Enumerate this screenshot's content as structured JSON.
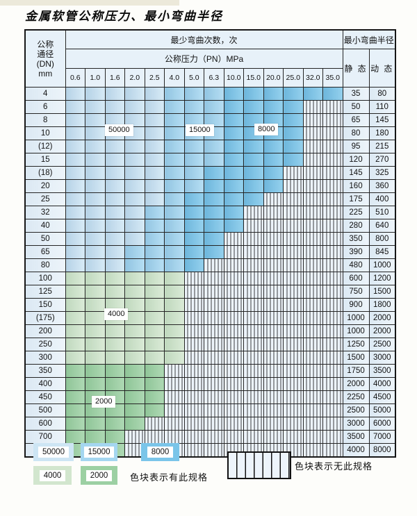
{
  "page": {
    "title": "金属软管公称压力、最小弯曲半径"
  },
  "colors": {
    "region_50000": "#cde5f4",
    "region_15000": "#a4d6f0",
    "region_8000": "#7ac5e9",
    "region_4000": "#d2e6ce",
    "region_2000": "#9cd0a3",
    "hatch_bg": "#edf4fb",
    "header_bg": "#e7f1f9"
  },
  "table": {
    "dn_header_lines": [
      "公称",
      "通径",
      "(DN)",
      "mm"
    ],
    "bend_times_label": "最少弯曲次数，次",
    "pressure_label": "公称压力（PN）MPa",
    "pressure_columns": [
      "0.6",
      "1.0",
      "1.6",
      "2.0",
      "2.5",
      "4.0",
      "5.0",
      "6.3",
      "10.0",
      "15.0",
      "20.0",
      "25.0",
      "32.0",
      "35.0"
    ],
    "radius_label": "最小弯曲半径",
    "static_label": "静 态",
    "dynamic_label": "动 态",
    "region_values": {
      "5": "50000",
      "15": "15000",
      "8": "8000",
      "4": "4000",
      "2": "2000",
      "x": "无此规格"
    },
    "rows": [
      {
        "dn": "4",
        "cells": [
          "5",
          "5",
          "5",
          "5",
          "5",
          "15",
          "15",
          "15",
          "8",
          "8",
          "8",
          "8",
          "8",
          "8"
        ],
        "static": "35",
        "dynamic": "80"
      },
      {
        "dn": "6",
        "cells": [
          "5",
          "5",
          "5",
          "5",
          "5",
          "15",
          "15",
          "15",
          "8",
          "8",
          "8",
          "8",
          "x",
          "x"
        ],
        "static": "50",
        "dynamic": "110"
      },
      {
        "dn": "8",
        "cells": [
          "5",
          "5",
          "5",
          "5",
          "5",
          "15",
          "15",
          "15",
          "8",
          "8",
          "8",
          "8",
          "x",
          "x"
        ],
        "static": "65",
        "dynamic": "145"
      },
      {
        "dn": "10",
        "cells": [
          "5",
          "5",
          "5",
          "5",
          "5",
          "15",
          "15",
          "15",
          "8",
          "8",
          "8",
          "8",
          "x",
          "x"
        ],
        "static": "80",
        "dynamic": "180"
      },
      {
        "dn": "(12)",
        "cells": [
          "5",
          "5",
          "5",
          "5",
          "5",
          "15",
          "15",
          "15",
          "8",
          "8",
          "8",
          "8",
          "x",
          "x"
        ],
        "static": "95",
        "dynamic": "215"
      },
      {
        "dn": "15",
        "cells": [
          "5",
          "5",
          "5",
          "5",
          "5",
          "15",
          "15",
          "15",
          "8",
          "8",
          "8",
          "8",
          "x",
          "x"
        ],
        "static": "120",
        "dynamic": "270"
      },
      {
        "dn": "(18)",
        "cells": [
          "5",
          "5",
          "5",
          "5",
          "5",
          "15",
          "15",
          "8",
          "8",
          "8",
          "8",
          "x",
          "x",
          "x"
        ],
        "static": "145",
        "dynamic": "325"
      },
      {
        "dn": "20",
        "cells": [
          "5",
          "5",
          "5",
          "5",
          "5",
          "15",
          "15",
          "8",
          "8",
          "8",
          "8",
          "x",
          "x",
          "x"
        ],
        "static": "160",
        "dynamic": "360"
      },
      {
        "dn": "25",
        "cells": [
          "5",
          "5",
          "5",
          "5",
          "5",
          "15",
          "8",
          "8",
          "8",
          "8",
          "x",
          "x",
          "x",
          "x"
        ],
        "static": "175",
        "dynamic": "400"
      },
      {
        "dn": "32",
        "cells": [
          "5",
          "5",
          "5",
          "5",
          "15",
          "15",
          "8",
          "8",
          "8",
          "x",
          "x",
          "x",
          "x",
          "x"
        ],
        "static": "225",
        "dynamic": "510"
      },
      {
        "dn": "40",
        "cells": [
          "5",
          "5",
          "5",
          "5",
          "15",
          "15",
          "8",
          "8",
          "8",
          "x",
          "x",
          "x",
          "x",
          "x"
        ],
        "static": "280",
        "dynamic": "640"
      },
      {
        "dn": "50",
        "cells": [
          "5",
          "5",
          "5",
          "5",
          "15",
          "15",
          "8",
          "8",
          "x",
          "x",
          "x",
          "x",
          "x",
          "x"
        ],
        "static": "350",
        "dynamic": "800"
      },
      {
        "dn": "65",
        "cells": [
          "5",
          "5",
          "5",
          "15",
          "15",
          "15",
          "8",
          "8",
          "x",
          "x",
          "x",
          "x",
          "x",
          "x"
        ],
        "static": "390",
        "dynamic": "845"
      },
      {
        "dn": "80",
        "cells": [
          "5",
          "5",
          "5",
          "15",
          "15",
          "15",
          "8",
          "x",
          "x",
          "x",
          "x",
          "x",
          "x",
          "x"
        ],
        "static": "480",
        "dynamic": "1000"
      },
      {
        "dn": "100",
        "cells": [
          "4",
          "4",
          "4",
          "4",
          "4",
          "4",
          "x",
          "x",
          "x",
          "x",
          "x",
          "x",
          "x",
          "x"
        ],
        "static": "600",
        "dynamic": "1200"
      },
      {
        "dn": "125",
        "cells": [
          "4",
          "4",
          "4",
          "4",
          "4",
          "4",
          "x",
          "x",
          "x",
          "x",
          "x",
          "x",
          "x",
          "x"
        ],
        "static": "750",
        "dynamic": "1500"
      },
      {
        "dn": "150",
        "cells": [
          "4",
          "4",
          "4",
          "4",
          "4",
          "4",
          "x",
          "x",
          "x",
          "x",
          "x",
          "x",
          "x",
          "x"
        ],
        "static": "900",
        "dynamic": "1800"
      },
      {
        "dn": "(175)",
        "cells": [
          "4",
          "4",
          "4",
          "4",
          "4",
          "4",
          "x",
          "x",
          "x",
          "x",
          "x",
          "x",
          "x",
          "x"
        ],
        "static": "1000",
        "dynamic": "2000"
      },
      {
        "dn": "200",
        "cells": [
          "4",
          "4",
          "4",
          "4",
          "4",
          "4",
          "x",
          "x",
          "x",
          "x",
          "x",
          "x",
          "x",
          "x"
        ],
        "static": "1000",
        "dynamic": "2000"
      },
      {
        "dn": "250",
        "cells": [
          "4",
          "4",
          "4",
          "4",
          "4",
          "4",
          "x",
          "x",
          "x",
          "x",
          "x",
          "x",
          "x",
          "x"
        ],
        "static": "1250",
        "dynamic": "2500"
      },
      {
        "dn": "300",
        "cells": [
          "4",
          "4",
          "4",
          "4",
          "4",
          "4",
          "x",
          "x",
          "x",
          "x",
          "x",
          "x",
          "x",
          "x"
        ],
        "static": "1500",
        "dynamic": "3000"
      },
      {
        "dn": "350",
        "cells": [
          "2",
          "2",
          "2",
          "2",
          "2",
          "x",
          "x",
          "x",
          "x",
          "x",
          "x",
          "x",
          "x",
          "x"
        ],
        "static": "1750",
        "dynamic": "3500"
      },
      {
        "dn": "400",
        "cells": [
          "2",
          "2",
          "2",
          "2",
          "2",
          "x",
          "x",
          "x",
          "x",
          "x",
          "x",
          "x",
          "x",
          "x"
        ],
        "static": "2000",
        "dynamic": "4000"
      },
      {
        "dn": "450",
        "cells": [
          "2",
          "2",
          "2",
          "2",
          "2",
          "x",
          "x",
          "x",
          "x",
          "x",
          "x",
          "x",
          "x",
          "x"
        ],
        "static": "2250",
        "dynamic": "4500"
      },
      {
        "dn": "500",
        "cells": [
          "2",
          "2",
          "2",
          "2",
          "2",
          "x",
          "x",
          "x",
          "x",
          "x",
          "x",
          "x",
          "x",
          "x"
        ],
        "static": "2500",
        "dynamic": "5000"
      },
      {
        "dn": "600",
        "cells": [
          "2",
          "2",
          "2",
          "2",
          "x",
          "x",
          "x",
          "x",
          "x",
          "x",
          "x",
          "x",
          "x",
          "x"
        ],
        "static": "3000",
        "dynamic": "6000"
      },
      {
        "dn": "700",
        "cells": [
          "2",
          "2",
          "2",
          "x",
          "x",
          "x",
          "x",
          "x",
          "x",
          "x",
          "x",
          "x",
          "x",
          "x"
        ],
        "static": "3500",
        "dynamic": "7000"
      },
      {
        "dn": "800",
        "cells": [
          "2",
          "2",
          "2",
          "x",
          "x",
          "x",
          "x",
          "x",
          "x",
          "x",
          "x",
          "x",
          "x",
          "x"
        ],
        "static": "4000",
        "dynamic": "8000"
      }
    ]
  },
  "overlay_labels": {
    "b50000": "50000",
    "b15000": "15000",
    "b8000": "8000",
    "b4000": "4000",
    "b2000": "2000"
  },
  "legend": {
    "sw50000": "50000",
    "sw15000": "15000",
    "sw8000": "8000",
    "sw4000": "4000",
    "sw2000": "2000",
    "has_spec_text": "色块表示有此规格",
    "no_spec_text": "色块表示无此规格"
  }
}
